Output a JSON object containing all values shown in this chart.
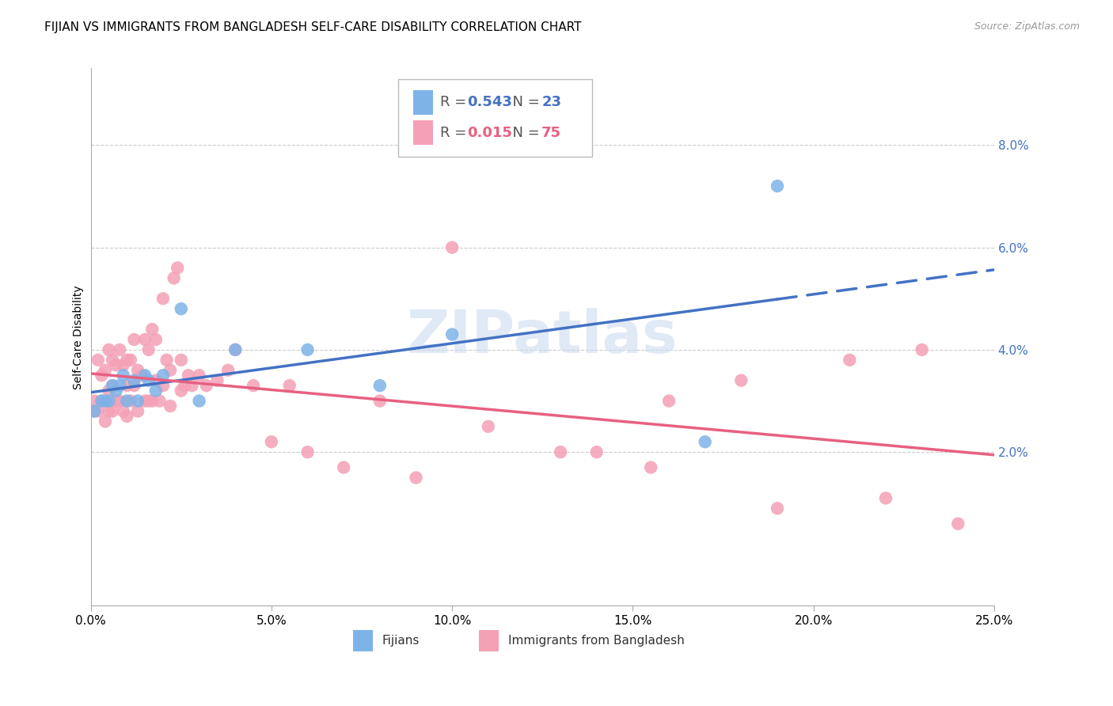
{
  "title": "FIJIAN VS IMMIGRANTS FROM BANGLADESH SELF-CARE DISABILITY CORRELATION CHART",
  "source": "Source: ZipAtlas.com",
  "ylabel": "Self-Care Disability",
  "xlim": [
    0.0,
    0.25
  ],
  "ylim": [
    -0.01,
    0.095
  ],
  "yticks": [
    0.02,
    0.04,
    0.06,
    0.08
  ],
  "ytick_labels": [
    "2.0%",
    "4.0%",
    "6.0%",
    "8.0%"
  ],
  "xticks": [
    0.0,
    0.05,
    0.1,
    0.15,
    0.2,
    0.25
  ],
  "xtick_labels": [
    "0.0%",
    "5.0%",
    "10.0%",
    "15.0%",
    "20.0%",
    "25.0%"
  ],
  "fijian_R": 0.543,
  "fijian_N": 23,
  "bangladesh_R": 0.015,
  "bangladesh_N": 75,
  "fijian_color": "#7eb3e8",
  "bangladesh_color": "#f4a0b5",
  "fijian_line_color": "#4472c4",
  "bangladesh_line_color": "#e86080",
  "fijian_scatter_x": [
    0.001,
    0.003,
    0.004,
    0.005,
    0.006,
    0.007,
    0.008,
    0.009,
    0.01,
    0.012,
    0.013,
    0.015,
    0.016,
    0.018,
    0.02,
    0.025,
    0.03,
    0.04,
    0.06,
    0.08,
    0.1,
    0.17,
    0.19
  ],
  "fijian_scatter_y": [
    0.028,
    0.03,
    0.03,
    0.03,
    0.033,
    0.032,
    0.033,
    0.035,
    0.03,
    0.034,
    0.03,
    0.035,
    0.034,
    0.032,
    0.035,
    0.048,
    0.03,
    0.04,
    0.04,
    0.033,
    0.043,
    0.022,
    0.072
  ],
  "bangladesh_scatter_x": [
    0.001,
    0.001,
    0.002,
    0.002,
    0.003,
    0.003,
    0.004,
    0.004,
    0.005,
    0.005,
    0.005,
    0.006,
    0.006,
    0.006,
    0.007,
    0.007,
    0.008,
    0.008,
    0.009,
    0.009,
    0.01,
    0.01,
    0.01,
    0.011,
    0.011,
    0.012,
    0.012,
    0.013,
    0.013,
    0.014,
    0.015,
    0.015,
    0.016,
    0.016,
    0.017,
    0.017,
    0.018,
    0.018,
    0.019,
    0.02,
    0.02,
    0.021,
    0.022,
    0.022,
    0.023,
    0.024,
    0.025,
    0.025,
    0.026,
    0.027,
    0.028,
    0.03,
    0.032,
    0.035,
    0.038,
    0.04,
    0.045,
    0.05,
    0.055,
    0.06,
    0.07,
    0.08,
    0.09,
    0.1,
    0.11,
    0.13,
    0.14,
    0.155,
    0.16,
    0.18,
    0.19,
    0.21,
    0.22,
    0.23,
    0.24
  ],
  "bangladesh_scatter_y": [
    0.03,
    0.028,
    0.038,
    0.028,
    0.035,
    0.03,
    0.036,
    0.026,
    0.04,
    0.032,
    0.028,
    0.038,
    0.033,
    0.028,
    0.037,
    0.03,
    0.04,
    0.03,
    0.037,
    0.028,
    0.038,
    0.033,
    0.027,
    0.038,
    0.03,
    0.042,
    0.033,
    0.036,
    0.028,
    0.035,
    0.042,
    0.03,
    0.04,
    0.03,
    0.044,
    0.03,
    0.042,
    0.034,
    0.03,
    0.05,
    0.033,
    0.038,
    0.036,
    0.029,
    0.054,
    0.056,
    0.038,
    0.032,
    0.033,
    0.035,
    0.033,
    0.035,
    0.033,
    0.034,
    0.036,
    0.04,
    0.033,
    0.022,
    0.033,
    0.02,
    0.017,
    0.03,
    0.015,
    0.06,
    0.025,
    0.02,
    0.02,
    0.017,
    0.03,
    0.034,
    0.009,
    0.038,
    0.011,
    0.04,
    0.006
  ],
  "watermark": "ZIPatlas",
  "background_color": "#ffffff",
  "grid_color": "#cccccc",
  "title_fontsize": 11,
  "axis_label_fontsize": 10,
  "tick_fontsize": 11,
  "tick_color": "#4472c4",
  "legend_R_color_fijian": "#4472c4",
  "legend_R_color_bangladesh": "#e86080"
}
